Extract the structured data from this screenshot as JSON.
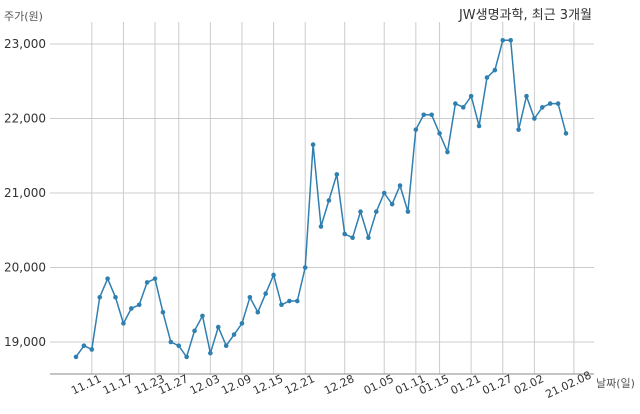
{
  "chart_data": {
    "type": "line",
    "title": "JW생명과학, 최근 3개월",
    "ylabel": "주가(원)",
    "xlabel": "날짜(일)",
    "ylim": [
      18600,
      23300
    ],
    "yticks": [
      19000,
      20000,
      21000,
      22000,
      23000
    ],
    "ytick_labels": [
      "19,000",
      "20,000",
      "21,000",
      "22,000",
      "23,000"
    ],
    "xtick_labels": [
      "11.11",
      "11.17",
      "11.23",
      "11.27",
      "12.03",
      "12.09",
      "12.15",
      "12.21",
      "12.28",
      "01.05",
      "01.11",
      "01.15",
      "01.21",
      "01.27",
      "02.02",
      "21.02.08"
    ],
    "xtick_index": [
      2,
      6,
      10,
      13,
      17,
      21,
      25,
      29,
      34,
      39,
      43,
      46,
      50,
      54,
      58,
      63
    ],
    "grid": true,
    "line_color": "#2f7fb0",
    "series": [
      {
        "values": [
          18800,
          18950,
          18900,
          19600,
          19850,
          19600,
          19250,
          19450,
          19500,
          19800,
          19850,
          19400,
          19000,
          18950,
          18800,
          19150,
          19350,
          18850,
          19200,
          18950,
          19100,
          19250,
          19600,
          19400,
          19650,
          19900,
          19500,
          19550,
          19550,
          20000,
          21650,
          20550,
          20900,
          21250,
          20450,
          20400,
          20750,
          20400,
          20750,
          21000,
          20850,
          21100,
          20750,
          21850,
          22050,
          22050,
          21800,
          21550,
          22200,
          22150,
          22300,
          21900,
          22550,
          22650,
          23050,
          23050,
          21850,
          22300,
          22000,
          22150,
          22200,
          22200,
          21800
        ]
      }
    ]
  }
}
